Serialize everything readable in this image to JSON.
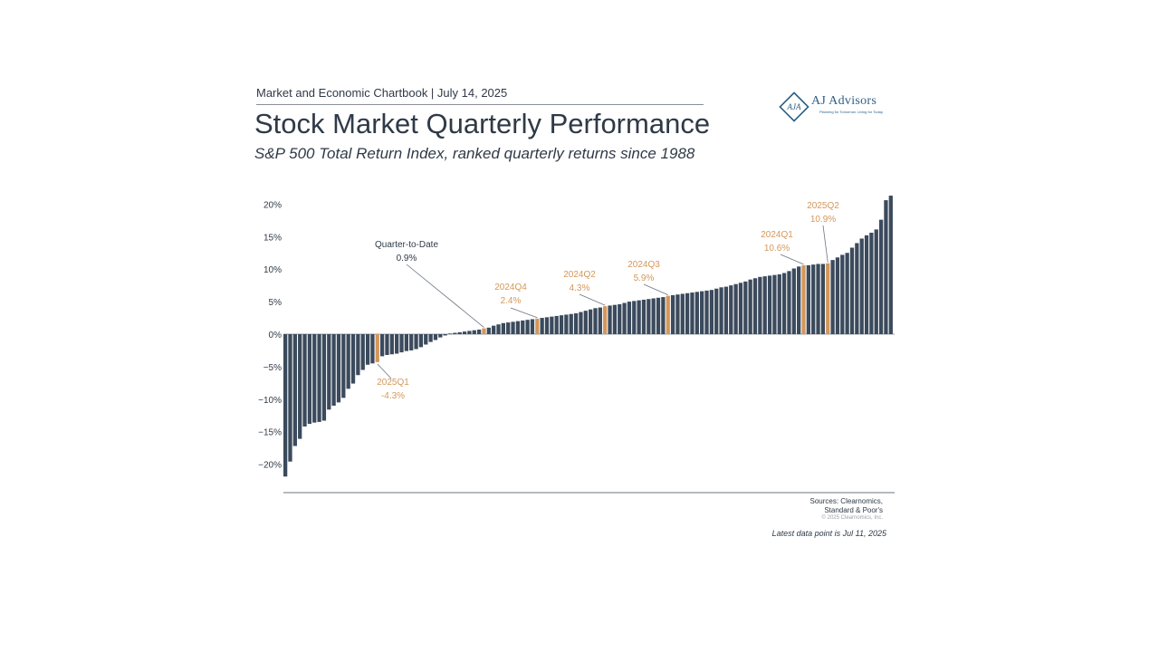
{
  "header": {
    "chartbook_line": "Market and Economic Chartbook | July 14, 2025"
  },
  "logo": {
    "name": "AJ Advisors",
    "monogram": "AJA",
    "tagline": "Planning for Tomorrow. Living for Today."
  },
  "footer": {
    "sources_line1": "Sources: Clearnomics,",
    "sources_line2": "Standard & Poor's",
    "copyright": "© 2025 Clearnomics, Inc.",
    "latest": "Latest data point is Jul 11, 2025"
  },
  "colors": {
    "bar": "#3b4a5c",
    "highlight": "#d4975a",
    "text": "#2f3a47",
    "annotation": "#d4975a"
  },
  "chart_data": {
    "type": "bar",
    "title": "Stock Market Quarterly Performance",
    "subtitle": "S&P 500 Total Return Index, ranked quarterly returns since 1988",
    "ylim": [
      -22,
      22
    ],
    "yticks": [
      20,
      15,
      10,
      5,
      0,
      -5,
      -10,
      -15,
      -20
    ],
    "ytick_labels": [
      "20%",
      "15%",
      "10%",
      "5%",
      "0%",
      "−5%",
      "−10%",
      "−15%",
      "−20%"
    ],
    "values": [
      -21.9,
      -19.6,
      -17.2,
      -16.1,
      -14.2,
      -13.8,
      -13.6,
      -13.5,
      -13.3,
      -11.6,
      -11.0,
      -10.5,
      -9.8,
      -8.4,
      -7.6,
      -6.3,
      -5.5,
      -4.7,
      -4.5,
      -4.3,
      -3.4,
      -3.2,
      -3.1,
      -3.0,
      -2.8,
      -2.6,
      -2.5,
      -2.3,
      -2.0,
      -1.6,
      -1.2,
      -0.9,
      -0.5,
      -0.2,
      0.1,
      0.2,
      0.3,
      0.4,
      0.5,
      0.6,
      0.7,
      0.9,
      1.0,
      1.3,
      1.5,
      1.7,
      1.8,
      1.9,
      2.0,
      2.1,
      2.2,
      2.3,
      2.4,
      2.5,
      2.6,
      2.7,
      2.8,
      2.9,
      3.0,
      3.1,
      3.2,
      3.4,
      3.6,
      3.8,
      4.0,
      4.1,
      4.3,
      4.4,
      4.5,
      4.6,
      4.8,
      5.0,
      5.1,
      5.2,
      5.3,
      5.4,
      5.5,
      5.6,
      5.7,
      5.9,
      6.0,
      6.1,
      6.2,
      6.3,
      6.4,
      6.5,
      6.6,
      6.7,
      6.8,
      7.0,
      7.2,
      7.3,
      7.5,
      7.7,
      7.9,
      8.1,
      8.4,
      8.6,
      8.8,
      8.9,
      9.0,
      9.1,
      9.2,
      9.4,
      9.7,
      10.1,
      10.4,
      10.6,
      10.6,
      10.7,
      10.8,
      10.8,
      10.9,
      11.4,
      11.8,
      12.2,
      12.5,
      13.3,
      14.0,
      14.7,
      15.2,
      15.6,
      16.1,
      17.6,
      20.6,
      21.3
    ],
    "highlights": [
      {
        "index": 19,
        "label": "2025Q1",
        "value_label": "-4.3%"
      },
      {
        "index": 41,
        "label": "Quarter-to-Date",
        "value_label": "0.9%"
      },
      {
        "index": 52,
        "label": "2024Q4",
        "value_label": "2.4%"
      },
      {
        "index": 66,
        "label": "2024Q2",
        "value_label": "4.3%"
      },
      {
        "index": 79,
        "label": "2024Q3",
        "value_label": "5.9%"
      },
      {
        "index": 107,
        "label": "2024Q1",
        "value_label": "10.6%"
      },
      {
        "index": 112,
        "label": "2025Q2",
        "value_label": "10.9%"
      }
    ]
  }
}
